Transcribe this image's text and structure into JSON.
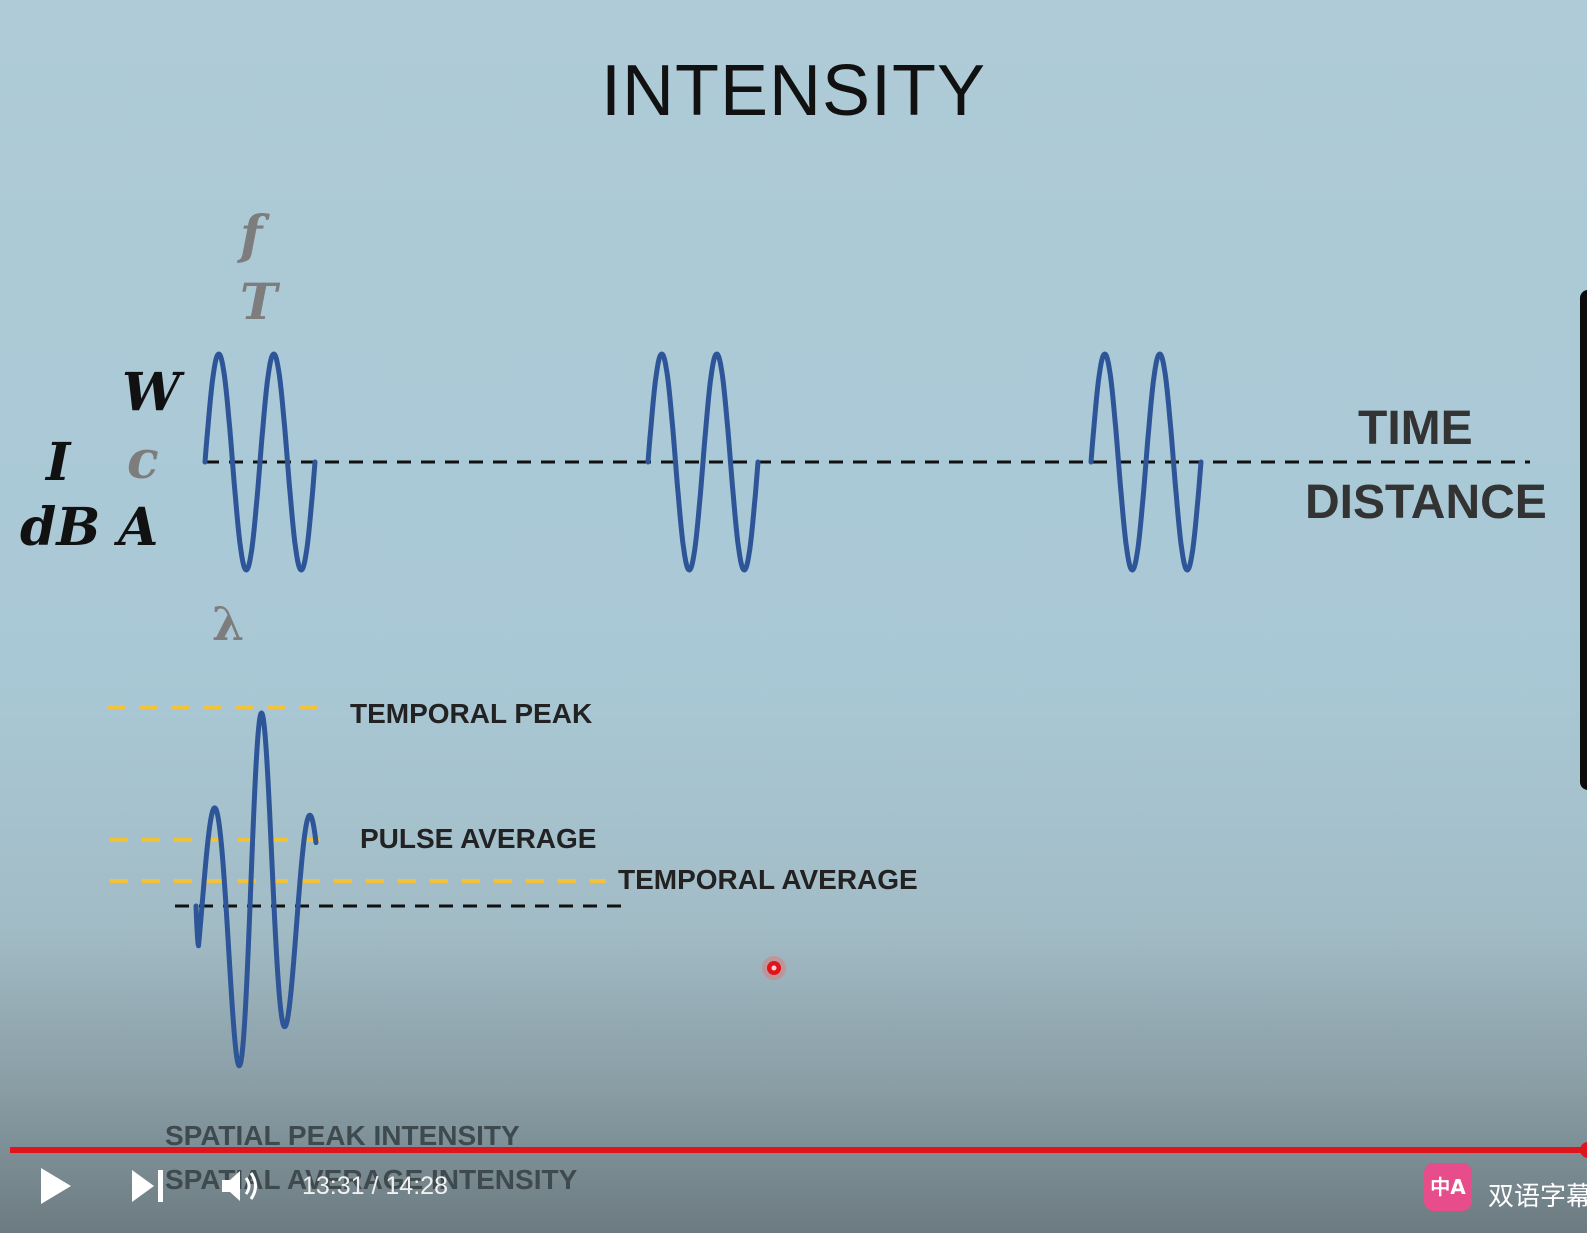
{
  "slide": {
    "title": "INTENSITY",
    "symbols": {
      "f": "f",
      "T": "T",
      "W": "W",
      "I": "I",
      "c": "c",
      "dB": "dB",
      "A": "A",
      "lambda": "λ"
    },
    "axis_labels": {
      "time": "TIME",
      "distance": "DISTANCE"
    },
    "levels": {
      "temporal_peak": "TEMPORAL PEAK",
      "pulse_average": "PULSE AVERAGE",
      "temporal_average": "TEMPORAL AVERAGE"
    },
    "spatial": {
      "peak": "SPATIAL PEAK INTENSITY",
      "average": "SPATIAL AVERAGE INTENSITY"
    },
    "colors": {
      "wave": "#2e5597",
      "level_line": "#f2c23a",
      "baseline": "#111111",
      "pointer": "#e0141c"
    }
  },
  "player": {
    "current_time": "13:31",
    "separator": " / ",
    "duration": "14:28",
    "progress": 0.935,
    "subtitle_badge": "中A",
    "subtitle_label": "双语字幕",
    "icons": {
      "play": "play-icon",
      "next": "next-icon",
      "volume": "volume-icon",
      "subtitle": "subtitle-icon"
    }
  }
}
